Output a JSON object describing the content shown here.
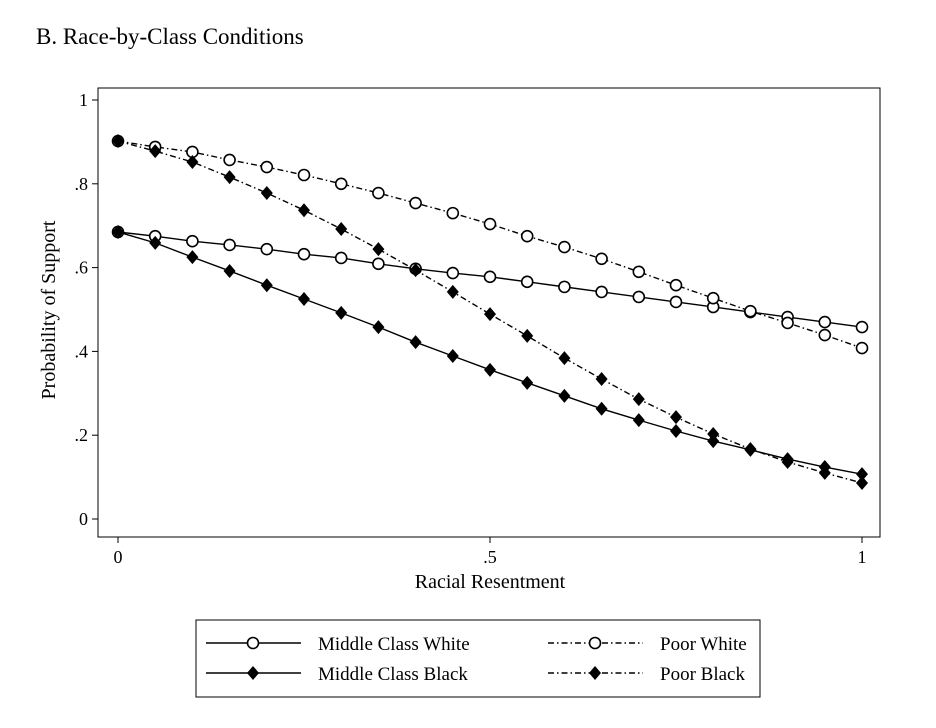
{
  "chart_data": {
    "type": "line",
    "title": "B. Race-by-Class Conditions",
    "xlabel": "Racial Resentment",
    "ylabel": "Probability of Support",
    "xlim": [
      0,
      1
    ],
    "ylim": [
      0,
      1
    ],
    "xticks": [
      {
        "v": 0,
        "label": "0"
      },
      {
        "v": 0.5,
        "label": ".5"
      },
      {
        "v": 1,
        "label": "1"
      }
    ],
    "yticks": [
      {
        "v": 0,
        "label": "0"
      },
      {
        "v": 0.2,
        "label": ".2"
      },
      {
        "v": 0.4,
        "label": ".4"
      },
      {
        "v": 0.6,
        "label": ".6"
      },
      {
        "v": 0.8,
        "label": ".8"
      },
      {
        "v": 1,
        "label": "1"
      }
    ],
    "grid": false,
    "legend_position": "bottom",
    "x": [
      0,
      0.05,
      0.1,
      0.15,
      0.2,
      0.25,
      0.3,
      0.35,
      0.4,
      0.45,
      0.5,
      0.55,
      0.6,
      0.65,
      0.7,
      0.75,
      0.8,
      0.85,
      0.9,
      0.95,
      1
    ],
    "series": [
      {
        "name": "Middle Class White",
        "line": "solid",
        "marker": "circle",
        "values": [
          0.685,
          0.675,
          0.663,
          0.654,
          0.644,
          0.632,
          0.623,
          0.609,
          0.597,
          0.587,
          0.578,
          0.566,
          0.554,
          0.542,
          0.53,
          0.518,
          0.506,
          0.494,
          0.482,
          0.47,
          0.458
        ]
      },
      {
        "name": "Poor White",
        "line": "dashdot",
        "marker": "circle",
        "values": [
          0.902,
          0.888,
          0.876,
          0.857,
          0.84,
          0.821,
          0.8,
          0.778,
          0.754,
          0.73,
          0.704,
          0.675,
          0.649,
          0.621,
          0.59,
          0.558,
          0.527,
          0.496,
          0.468,
          0.439,
          0.408
        ]
      },
      {
        "name": "Middle Class Black",
        "line": "solid",
        "marker": "diamond",
        "values": [
          0.685,
          0.659,
          0.625,
          0.592,
          0.558,
          0.525,
          0.492,
          0.458,
          0.422,
          0.389,
          0.356,
          0.325,
          0.294,
          0.263,
          0.236,
          0.21,
          0.186,
          0.165,
          0.143,
          0.124,
          0.107
        ]
      },
      {
        "name": "Poor Black",
        "line": "dashdot",
        "marker": "diamond",
        "values": [
          0.902,
          0.878,
          0.852,
          0.816,
          0.778,
          0.737,
          0.692,
          0.644,
          0.594,
          0.542,
          0.489,
          0.437,
          0.384,
          0.334,
          0.286,
          0.243,
          0.203,
          0.167,
          0.136,
          0.11,
          0.086
        ]
      }
    ]
  }
}
